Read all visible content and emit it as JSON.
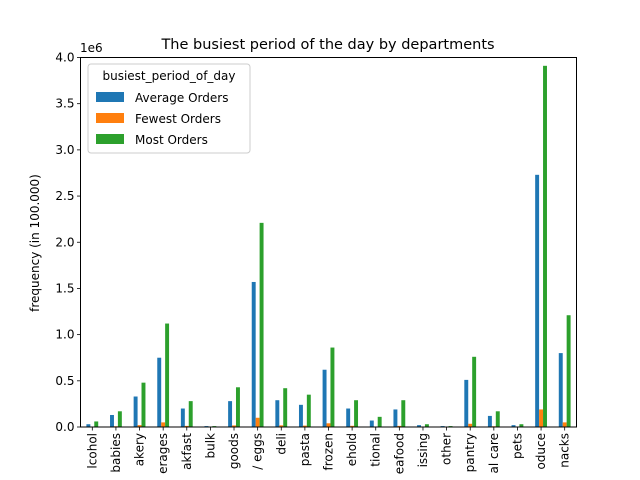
{
  "chart_data": {
    "type": "bar",
    "title": "The busiest period of the day by departments",
    "xlabel": "",
    "ylabel": "frequency (in 100.000)",
    "y_offset_label": "1e6",
    "ylim": [
      0,
      4.0
    ],
    "y_ticks": [
      "0.0",
      "0.5",
      "1.0",
      "1.5",
      "2.0",
      "2.5",
      "3.0",
      "3.5",
      "4.0"
    ],
    "grid": false,
    "legend_title": "busiest_period_of_day",
    "legend_position": "top-left",
    "categories": [
      "alcohol",
      "babies",
      "bakery",
      "beverages",
      "breakfast",
      "bulk",
      "canned goods",
      "dairy eggs",
      "deli",
      "pasta",
      "frozen",
      "household",
      "international",
      "seafood",
      "missing",
      "other",
      "pantry",
      "personal care",
      "pets",
      "produce",
      "snacks"
    ],
    "tick_labels": [
      "lcohol",
      "babies",
      "akery",
      "erages",
      "akfast",
      "bulk",
      "goods",
      "/ eggs",
      "deli",
      "pasta",
      "frozen",
      "ehold",
      "tional",
      "eafood",
      "issing",
      "other",
      "pantry",
      "al care",
      "pets",
      "oduce",
      "nacks"
    ],
    "series": [
      {
        "name": "Average Orders",
        "color": "#1f77b4",
        "values": [
          0.03,
          0.13,
          0.33,
          0.75,
          0.2,
          0.01,
          0.28,
          1.57,
          0.29,
          0.24,
          0.62,
          0.2,
          0.07,
          0.19,
          0.02,
          0.01,
          0.51,
          0.12,
          0.02,
          2.73,
          0.8
        ]
      },
      {
        "name": "Fewest Orders",
        "color": "#ff7f0e",
        "values": [
          0.002,
          0.008,
          0.02,
          0.05,
          0.012,
          0.001,
          0.017,
          0.1,
          0.018,
          0.015,
          0.04,
          0.013,
          0.005,
          0.012,
          0.002,
          0.001,
          0.035,
          0.008,
          0.002,
          0.19,
          0.05
        ]
      },
      {
        "name": "Most Orders",
        "color": "#2ca02c",
        "values": [
          0.06,
          0.17,
          0.48,
          1.12,
          0.28,
          0.01,
          0.43,
          2.21,
          0.42,
          0.35,
          0.86,
          0.29,
          0.11,
          0.29,
          0.03,
          0.01,
          0.76,
          0.17,
          0.03,
          3.91,
          1.21
        ]
      }
    ]
  }
}
